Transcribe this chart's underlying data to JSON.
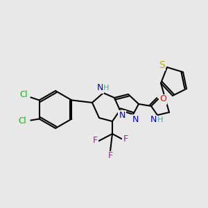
{
  "bg_color": "#e8e8e8",
  "colors": {
    "C": "#000000",
    "N": "#0000cc",
    "O": "#ff0000",
    "S": "#ccaa00",
    "Cl": "#00bb00",
    "F": "#cc00cc",
    "H_label": "#44aaaa"
  },
  "figsize": [
    3.0,
    3.0
  ],
  "dpi": 100
}
